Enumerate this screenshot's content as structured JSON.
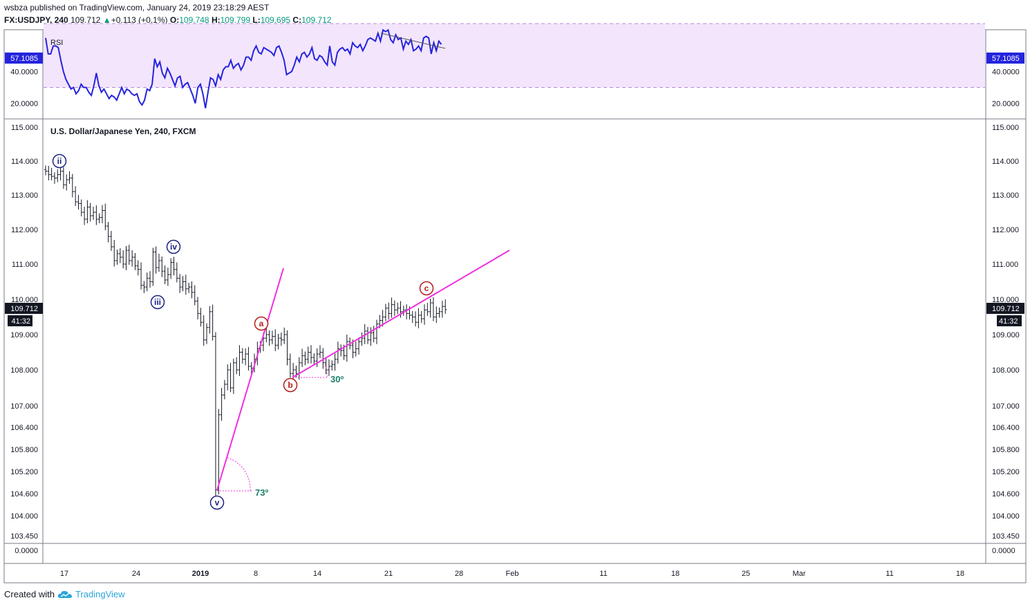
{
  "header": {
    "author": "wsbza",
    "published_text": "published on TradingView.com, January 24, 2019 23:18:29 AEST",
    "symbol": "FX:USDJPY, 240",
    "last": "109.712",
    "change_arrow": "▲",
    "change": "+0.113 (+0.1%)",
    "o_label": "O:",
    "o": "109.748",
    "h_label": "H:",
    "h": "109.799",
    "l_label": "L:",
    "l": "109.695",
    "c_label": "C:",
    "c": "109.712"
  },
  "footer": {
    "created_with": "Created with",
    "brand": "TradingView",
    "logo_icon": "tradingview-cloud-icon"
  },
  "chart_data": [
    {
      "type": "line",
      "title": "RSI",
      "current_value_label": "57.1085",
      "ytick_labels": [
        "40.0000",
        "20.0000"
      ],
      "yticks": [
        40,
        20
      ],
      "ylim": [
        12,
        64
      ],
      "band": [
        30,
        70
      ],
      "band_color": "#f3e5fc",
      "line_color": "#2424dd",
      "values": [
        61,
        51,
        51,
        56,
        56,
        55,
        47,
        40,
        35,
        32,
        29,
        30,
        26,
        28,
        32,
        30,
        30,
        27,
        25,
        31,
        39,
        31,
        27,
        29,
        26,
        23,
        25,
        24,
        22,
        26,
        30,
        26,
        29,
        28,
        26,
        25,
        26,
        21,
        19,
        22,
        29,
        28,
        32,
        48,
        43,
        46,
        39,
        36,
        42,
        39,
        35,
        31,
        36,
        37,
        30,
        32,
        33,
        29,
        25,
        20,
        30,
        32,
        26,
        17,
        27,
        36,
        35,
        31,
        38,
        35,
        41,
        43,
        43,
        47,
        42,
        44,
        45,
        41,
        44,
        49,
        49,
        47,
        53,
        56,
        52,
        51,
        55,
        54,
        53,
        52,
        50,
        55,
        56,
        52,
        47,
        38,
        39,
        40,
        44,
        49,
        46,
        51,
        52,
        49,
        51,
        55,
        48,
        47,
        50,
        49,
        46,
        44,
        56,
        46,
        44,
        52,
        54,
        55,
        53,
        54,
        51,
        58,
        56,
        55,
        57,
        53,
        56,
        60,
        61,
        60,
        59,
        64,
        59,
        66,
        65,
        66,
        60,
        58,
        63,
        60,
        61,
        54,
        59,
        57,
        60,
        53,
        54,
        56,
        53,
        61,
        62,
        61,
        51,
        58,
        53,
        59,
        57
      ]
    },
    {
      "type": "candlestick",
      "title": "U.S. Dollar/Japanese Yen, 240, FXCM",
      "ytick_labels": [
        "115.000",
        "114.000",
        "113.000",
        "112.000",
        "111.000",
        "110.000",
        "109.000",
        "108.000",
        "107.000",
        "106.400",
        "105.800",
        "105.200",
        "104.600",
        "104.000",
        "103.450"
      ],
      "yticks": [
        115.0,
        114.0,
        113.0,
        112.0,
        111.0,
        110.0,
        109.0,
        108.0,
        107.0,
        106.4,
        105.8,
        105.2,
        104.6,
        104.0,
        103.45
      ],
      "current_price_label": "109.712",
      "countdown_label": "41:32",
      "bar_color": "#131722",
      "closes": [
        113.7,
        113.6,
        113.55,
        113.5,
        113.6,
        113.7,
        113.3,
        113.45,
        113.5,
        113.1,
        112.8,
        112.75,
        112.5,
        112.3,
        112.65,
        112.4,
        112.5,
        112.3,
        112.35,
        112.55,
        112.1,
        111.8,
        111.5,
        111.1,
        111.3,
        111.2,
        111.0,
        111.4,
        111.1,
        111.2,
        110.95,
        110.85,
        110.4,
        110.35,
        110.6,
        110.5,
        111.35,
        110.9,
        111.1,
        110.8,
        110.55,
        110.7,
        111.05,
        110.85,
        110.6,
        110.35,
        110.5,
        110.3,
        110.35,
        110.2,
        109.95,
        109.6,
        109.35,
        108.85,
        109.2,
        109.65,
        108.95,
        104.7,
        106.75,
        107.3,
        107.6,
        108.0,
        107.5,
        108.2,
        108.0,
        108.5,
        108.3,
        108.45,
        108.1,
        108.05,
        108.3,
        108.6,
        108.7,
        108.9,
        109.0,
        108.85,
        108.95,
        108.7,
        108.9,
        108.85,
        109.0,
        108.3,
        107.9,
        108.0,
        107.9,
        108.2,
        108.4,
        108.3,
        108.5,
        108.35,
        108.25,
        108.45,
        108.5,
        108.2,
        108.0,
        108.1,
        108.15,
        108.3,
        108.6,
        108.55,
        108.4,
        108.8,
        108.7,
        108.5,
        108.6,
        108.8,
        108.9,
        109.1,
        108.85,
        109.05,
        108.9,
        109.3,
        109.4,
        109.5,
        109.75,
        109.6,
        109.85,
        109.7,
        109.75,
        109.65,
        109.7,
        109.6,
        109.55,
        109.5,
        109.35,
        109.55,
        109.45,
        109.7,
        109.65,
        109.9,
        109.5,
        109.6,
        109.65,
        109.8,
        109.71
      ]
    }
  ],
  "x_axis": {
    "labels": [
      "17",
      "24",
      "2019",
      "8",
      "14",
      "21",
      "28",
      "Feb",
      "11",
      "18",
      "25",
      "Mar",
      "11",
      "18"
    ],
    "bold": [
      false,
      false,
      true,
      false,
      false,
      false,
      false,
      false,
      false,
      false,
      false,
      false,
      false,
      false
    ]
  },
  "drawings": {
    "wave_labels": [
      {
        "text": "ii",
        "color": "#1a237e"
      },
      {
        "text": "iii",
        "color": "#1a237e"
      },
      {
        "text": "iv",
        "color": "#1a237e"
      },
      {
        "text": "v",
        "color": "#1a237e"
      },
      {
        "text": "a",
        "color": "#b71c1c"
      },
      {
        "text": "b",
        "color": "#b71c1c"
      },
      {
        "text": "c",
        "color": "#b71c1c"
      }
    ],
    "angles": [
      "73º",
      "30º"
    ],
    "trendline_color": "#f030e0",
    "angle_text_color": "#1b7f6a"
  }
}
